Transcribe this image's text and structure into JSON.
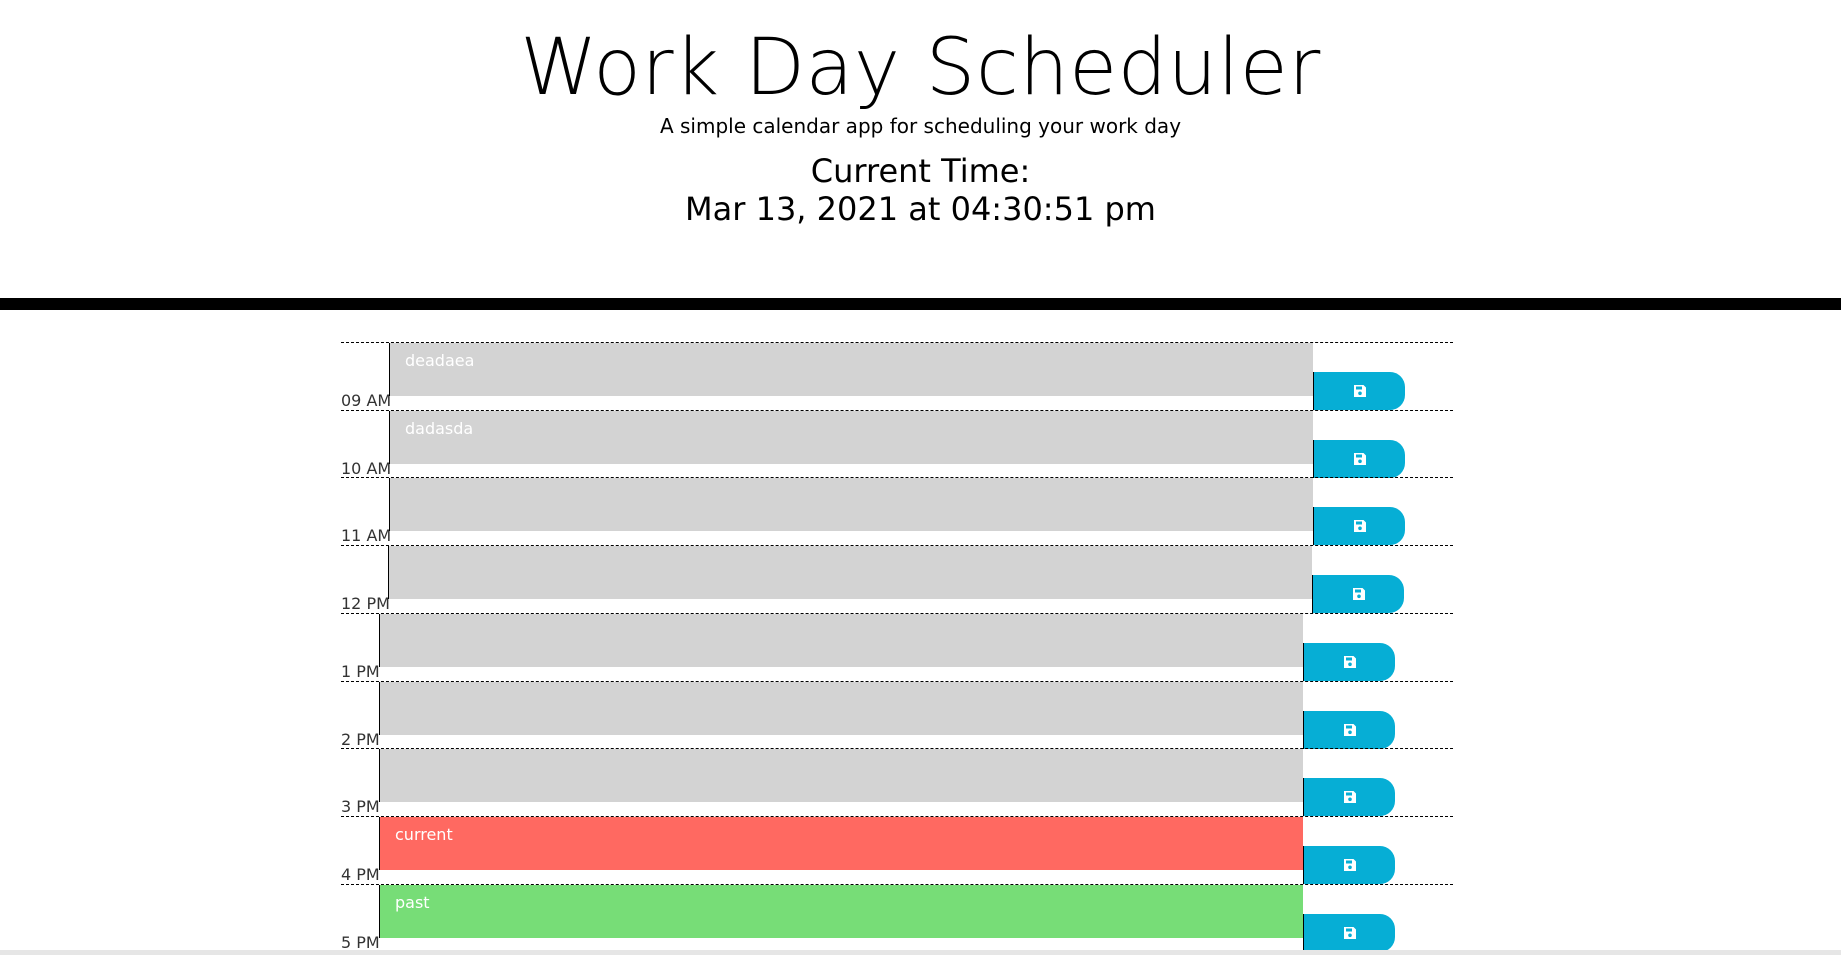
{
  "header": {
    "title": "Work Day Scheduler",
    "subtitle": "A simple calendar app for scheduling your work day",
    "time_label": "Current Time:",
    "time_value": "Mar 13, 2021 at 04:30:51 pm"
  },
  "colors": {
    "past_gray": "#d3d3d3",
    "present_red": "#ff6961",
    "future_green": "#77dd77",
    "save_blue": "#06aed5"
  },
  "save_icon": "floppy-disk-icon",
  "rows": [
    {
      "hour": "09 AM",
      "text": "deadaea",
      "state": "past"
    },
    {
      "hour": "10 AM",
      "text": "dadasda",
      "state": "past"
    },
    {
      "hour": "11 AM",
      "text": "",
      "state": "past"
    },
    {
      "hour": "12 PM",
      "text": "",
      "state": "past"
    },
    {
      "hour": "1 PM",
      "text": "",
      "state": "past"
    },
    {
      "hour": "2 PM",
      "text": "",
      "state": "past"
    },
    {
      "hour": "3 PM",
      "text": "",
      "state": "past"
    },
    {
      "hour": "4 PM",
      "text": "current",
      "state": "present"
    },
    {
      "hour": "5 PM",
      "text": "past",
      "state": "future"
    }
  ]
}
